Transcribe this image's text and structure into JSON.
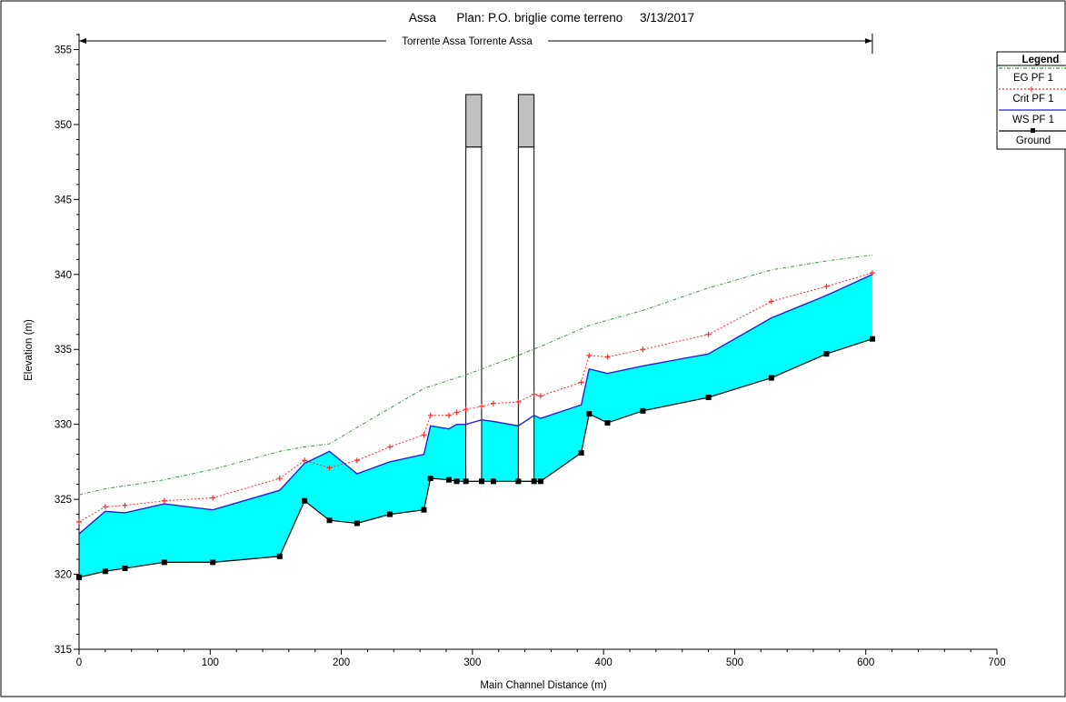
{
  "chart_data": {
    "type": "line",
    "title": "Assa      Plan: P.O. briglie come terreno     3/13/2017",
    "reach_label": "Torrente Assa Torrente Assa",
    "xlabel": "Main Channel Distance (m)",
    "ylabel": "Elevation (m)",
    "xlim": [
      0,
      700
    ],
    "ylim": [
      315,
      356
    ],
    "x_ticks": [
      0,
      100,
      200,
      300,
      400,
      500,
      600,
      700
    ],
    "y_ticks": [
      315,
      320,
      325,
      330,
      335,
      340,
      345,
      350,
      355
    ],
    "reach_range": [
      0,
      605
    ],
    "legend": {
      "title": "Legend",
      "placement": "top-right",
      "entries": [
        {
          "label": "EG  PF 1",
          "key": "eg"
        },
        {
          "label": "Crit  PF 1",
          "key": "crit"
        },
        {
          "label": "WS  PF 1",
          "key": "ws"
        },
        {
          "label": "Ground",
          "key": "ground"
        }
      ]
    },
    "colors": {
      "eg": "#3a9a3a",
      "crit": "#ff2a2a",
      "ws": "#2222dd",
      "ground": "#000000",
      "fill": "#00ffff",
      "structure_top": "#c0c0c0"
    },
    "structures": [
      {
        "x": [
          295,
          307
        ],
        "top": 352,
        "sill": 348.5,
        "base": 326.2
      },
      {
        "x": [
          335,
          347
        ],
        "top": 352,
        "sill": 348.5,
        "base": 326.2
      }
    ],
    "series": [
      {
        "key": "ground",
        "x": [
          0,
          20,
          35,
          65,
          102,
          153,
          172,
          191,
          212,
          237,
          263,
          268,
          282,
          288,
          295,
          307,
          316,
          335,
          347,
          352,
          383,
          389,
          403,
          430,
          480,
          528,
          570,
          605
        ],
        "y": [
          319.8,
          320.2,
          320.4,
          320.8,
          320.8,
          321.2,
          324.9,
          323.6,
          323.4,
          324.0,
          324.3,
          326.4,
          326.3,
          326.2,
          326.2,
          326.2,
          326.2,
          326.2,
          326.2,
          326.2,
          328.1,
          330.7,
          330.1,
          330.9,
          331.8,
          333.1,
          334.7,
          335.7
        ]
      },
      {
        "key": "ws",
        "x": [
          0,
          20,
          35,
          65,
          102,
          153,
          172,
          191,
          212,
          237,
          263,
          268,
          282,
          288,
          295,
          307,
          316,
          335,
          347,
          352,
          383,
          389,
          403,
          430,
          480,
          528,
          570,
          605
        ],
        "y": [
          322.7,
          324.2,
          324.1,
          324.7,
          324.3,
          325.6,
          327.4,
          328.2,
          326.7,
          327.5,
          328.0,
          329.9,
          329.7,
          330.0,
          330.0,
          330.3,
          330.2,
          329.9,
          330.6,
          330.4,
          331.3,
          333.7,
          333.4,
          333.9,
          334.7,
          337.1,
          338.6,
          340.0
        ]
      },
      {
        "key": "crit",
        "x": [
          0,
          20,
          35,
          65,
          102,
          153,
          172,
          191,
          212,
          237,
          263,
          268,
          282,
          288,
          295,
          307,
          316,
          335,
          347,
          352,
          383,
          389,
          403,
          430,
          480,
          528,
          570,
          605
        ],
        "y": [
          323.5,
          324.5,
          324.6,
          324.9,
          325.1,
          326.4,
          327.6,
          327.1,
          327.6,
          328.5,
          329.3,
          330.6,
          330.6,
          330.8,
          331.0,
          331.2,
          331.4,
          331.5,
          332.0,
          331.9,
          332.8,
          334.6,
          334.5,
          335.0,
          336.0,
          338.2,
          339.2,
          340.1
        ]
      },
      {
        "key": "eg",
        "x": [
          0,
          20,
          65,
          102,
          153,
          172,
          191,
          212,
          263,
          295,
          335,
          352,
          389,
          430,
          480,
          528,
          570,
          605
        ],
        "y": [
          325.3,
          325.7,
          326.3,
          327.0,
          328.2,
          328.5,
          328.7,
          329.8,
          332.4,
          333.3,
          334.6,
          335.2,
          336.6,
          337.6,
          339.1,
          340.3,
          340.9,
          341.3
        ]
      }
    ]
  }
}
